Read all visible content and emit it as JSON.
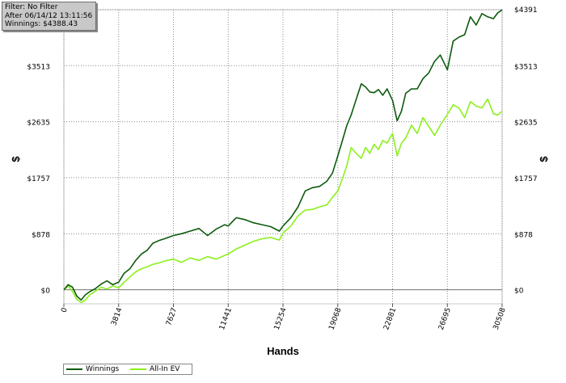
{
  "info_box": {
    "filter": "Filter: No Filter",
    "after": "After 06/14/12 13:11:56",
    "winnings": "Winnings: $4388.43"
  },
  "colors": {
    "winnings": "#0d5a0d",
    "allin_ev": "#8cf01c",
    "grid": "#8a8a8a",
    "zero_line": "#707070"
  },
  "chart_data": {
    "type": "line",
    "xlabel": "Hands",
    "ylabel": "$",
    "xlim": [
      0,
      30508
    ],
    "ylim": [
      -220,
      4391
    ],
    "x_ticks": [
      0,
      3814,
      7627,
      11441,
      15254,
      19068,
      22881,
      26695,
      30508
    ],
    "x_tick_labels": [
      "0",
      "3814",
      "7627",
      "11441",
      "15254",
      "19068",
      "22881",
      "26695",
      "30508"
    ],
    "y_ticks": [
      0,
      878,
      1757,
      2635,
      3513,
      4391
    ],
    "y_tick_labels": [
      "$0",
      "$878",
      "$1757",
      "$2635",
      "$3513",
      "$4391"
    ],
    "grid": true,
    "legend_position": "bottom-left",
    "series": [
      {
        "name": "Winnings",
        "color": "#0d5a0d",
        "x": [
          0,
          300,
          600,
          900,
          1200,
          1500,
          1800,
          2200,
          2600,
          3000,
          3400,
          3814,
          4200,
          4600,
          5000,
          5400,
          5800,
          6200,
          6600,
          7000,
          7627,
          8200,
          8800,
          9400,
          10000,
          10600,
          11200,
          11441,
          12000,
          12600,
          13200,
          13800,
          14400,
          15000,
          15254,
          15800,
          16300,
          16800,
          17300,
          17800,
          18300,
          18700,
          19068,
          19400,
          19700,
          20000,
          20300,
          20700,
          21000,
          21300,
          21600,
          21900,
          22200,
          22500,
          22881,
          23200,
          23500,
          23800,
          24200,
          24600,
          25000,
          25400,
          25800,
          26200,
          26695,
          27100,
          27500,
          27900,
          28300,
          28700,
          29100,
          29500,
          29900,
          30200,
          30508
        ],
        "y": [
          0,
          80,
          40,
          -100,
          -160,
          -80,
          -30,
          20,
          90,
          140,
          80,
          120,
          260,
          330,
          460,
          560,
          620,
          730,
          770,
          800,
          850,
          880,
          920,
          960,
          850,
          950,
          1020,
          1000,
          1130,
          1100,
          1050,
          1020,
          990,
          920,
          1000,
          1130,
          1300,
          1550,
          1600,
          1620,
          1700,
          1830,
          2100,
          2350,
          2580,
          2740,
          2950,
          3230,
          3180,
          3100,
          3090,
          3140,
          3050,
          3150,
          2970,
          2650,
          2800,
          3080,
          3150,
          3150,
          3310,
          3400,
          3580,
          3680,
          3450,
          3900,
          3960,
          4000,
          4280,
          4150,
          4330,
          4280,
          4250,
          4340,
          4388
        ]
      },
      {
        "name": "All-In EV",
        "color": "#8cf01c",
        "x": [
          0,
          300,
          600,
          900,
          1200,
          1500,
          1800,
          2200,
          2600,
          3000,
          3400,
          3814,
          4200,
          4600,
          5000,
          5400,
          5800,
          6200,
          6600,
          7000,
          7627,
          8200,
          8800,
          9400,
          10000,
          10600,
          11200,
          11441,
          12000,
          12600,
          13200,
          13800,
          14400,
          15000,
          15254,
          15800,
          16300,
          16800,
          17300,
          17800,
          18300,
          18700,
          19068,
          19400,
          19700,
          20000,
          20300,
          20700,
          21000,
          21300,
          21600,
          21900,
          22200,
          22500,
          22881,
          23200,
          23500,
          23800,
          24200,
          24600,
          25000,
          25400,
          25800,
          26200,
          26695,
          27100,
          27500,
          27900,
          28300,
          28700,
          29100,
          29500,
          29900,
          30200,
          30508
        ],
        "y": [
          0,
          60,
          -30,
          -150,
          -200,
          -160,
          -80,
          -20,
          40,
          10,
          60,
          30,
          120,
          200,
          280,
          330,
          360,
          400,
          420,
          450,
          480,
          430,
          500,
          460,
          520,
          480,
          540,
          560,
          640,
          700,
          760,
          800,
          820,
          780,
          890,
          1000,
          1160,
          1250,
          1260,
          1300,
          1330,
          1450,
          1550,
          1750,
          1950,
          2230,
          2150,
          2060,
          2230,
          2140,
          2280,
          2200,
          2340,
          2300,
          2450,
          2100,
          2300,
          2380,
          2580,
          2450,
          2700,
          2560,
          2420,
          2580,
          2750,
          2900,
          2850,
          2700,
          2950,
          2880,
          2850,
          2990,
          2760,
          2740,
          2800
        ]
      }
    ]
  }
}
